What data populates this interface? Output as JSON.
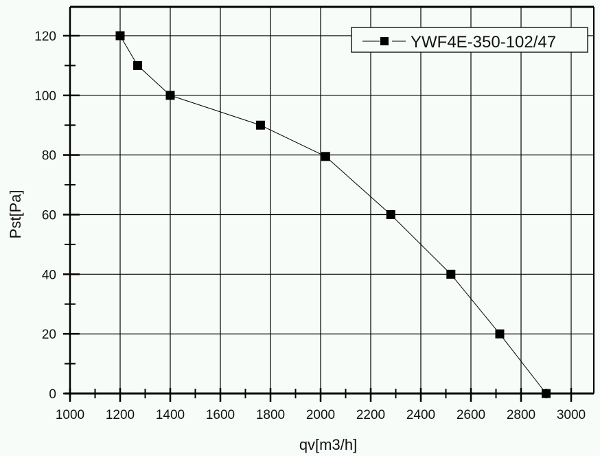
{
  "chart_data": {
    "type": "line",
    "title": "",
    "xlabel": "qv[m3/h]",
    "ylabel": "Pst[Pa]",
    "xlim": [
      1000,
      3090
    ],
    "ylim": [
      0,
      130
    ],
    "x_ticks": [
      1000,
      1200,
      1400,
      1600,
      1800,
      2000,
      2200,
      2400,
      2600,
      2800,
      3000
    ],
    "y_ticks": [
      0,
      20,
      40,
      60,
      80,
      100,
      120
    ],
    "grid": true,
    "legend_position": "top-right",
    "series": [
      {
        "name": "YWF4E-350-102/47",
        "marker": "square",
        "color": "#000000",
        "x": [
          1200,
          1270,
          1400,
          1760,
          2020,
          2280,
          2520,
          2715,
          2900
        ],
        "y": [
          120,
          110,
          100,
          90,
          79.5,
          60,
          40,
          20,
          0
        ]
      }
    ]
  },
  "legend": {
    "label": "YWF4E-350-102/47"
  },
  "axes": {
    "x_title": "qv[m3/h]",
    "y_title": "Pst[Pa]"
  }
}
